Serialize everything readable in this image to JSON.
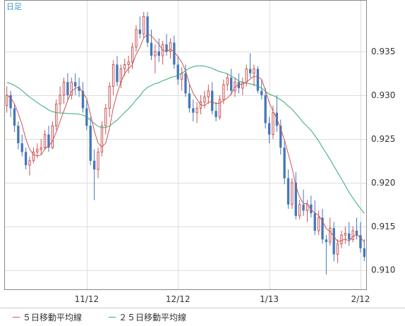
{
  "chart_data": {
    "type": "candlestick",
    "period_label": "日足",
    "y_ticks": [
      0.935,
      0.93,
      0.925,
      0.92,
      0.915,
      0.91
    ],
    "y_tick_labels": [
      "0.935",
      "0.930",
      "0.925",
      "0.920",
      "0.915",
      "0.910"
    ],
    "ylim": [
      0.9078,
      0.9408
    ],
    "x_tick_labels": [
      "11/12",
      "12/12",
      "1/13",
      "2/12"
    ],
    "x_tick_bar_index": [
      21,
      45,
      69,
      93
    ],
    "bar_count": 95,
    "grid": true,
    "legend": [
      {
        "name": "５日移動平均線",
        "color": "#cc5555"
      },
      {
        "name": "２５日移動平均線",
        "color": "#33aa77"
      }
    ],
    "colors": {
      "up": "#cc5555",
      "down": "#4477bb",
      "ma5": "#cc5555",
      "ma25": "#33aa77",
      "grid": "#dddddd",
      "frame": "#888888"
    },
    "ohlc": [
      [
        0.9288,
        0.931,
        0.928,
        0.93
      ],
      [
        0.93,
        0.9305,
        0.9275,
        0.9285
      ],
      [
        0.9285,
        0.929,
        0.9258,
        0.9265
      ],
      [
        0.9265,
        0.927,
        0.9238,
        0.9245
      ],
      [
        0.9245,
        0.9255,
        0.923,
        0.9235
      ],
      [
        0.9235,
        0.924,
        0.9215,
        0.922
      ],
      [
        0.922,
        0.923,
        0.9208,
        0.9225
      ],
      [
        0.9225,
        0.924,
        0.9222,
        0.9235
      ],
      [
        0.9235,
        0.9245,
        0.9228,
        0.9238
      ],
      [
        0.9238,
        0.925,
        0.9232,
        0.924
      ],
      [
        0.924,
        0.926,
        0.9238,
        0.9255
      ],
      [
        0.9255,
        0.9265,
        0.9235,
        0.924
      ],
      [
        0.924,
        0.927,
        0.9238,
        0.9265
      ],
      [
        0.9265,
        0.9295,
        0.926,
        0.929
      ],
      [
        0.929,
        0.931,
        0.928,
        0.93
      ],
      [
        0.93,
        0.932,
        0.929,
        0.9315
      ],
      [
        0.9315,
        0.9325,
        0.9295,
        0.93
      ],
      [
        0.93,
        0.932,
        0.9295,
        0.9315
      ],
      [
        0.9315,
        0.9325,
        0.93,
        0.931
      ],
      [
        0.931,
        0.932,
        0.9298,
        0.9305
      ],
      [
        0.9305,
        0.9315,
        0.928,
        0.9285
      ],
      [
        0.9285,
        0.9295,
        0.926,
        0.9265
      ],
      [
        0.9265,
        0.9275,
        0.922,
        0.9225
      ],
      [
        0.9225,
        0.9238,
        0.918,
        0.9215
      ],
      [
        0.9215,
        0.924,
        0.9205,
        0.9235
      ],
      [
        0.9235,
        0.927,
        0.923,
        0.9265
      ],
      [
        0.9265,
        0.929,
        0.9255,
        0.9285
      ],
      [
        0.9285,
        0.9315,
        0.9275,
        0.931
      ],
      [
        0.931,
        0.934,
        0.93,
        0.9335
      ],
      [
        0.9335,
        0.9345,
        0.931,
        0.9315
      ],
      [
        0.9315,
        0.9335,
        0.9308,
        0.933
      ],
      [
        0.933,
        0.9342,
        0.9322,
        0.9335
      ],
      [
        0.9335,
        0.9345,
        0.9325,
        0.9338
      ],
      [
        0.9338,
        0.936,
        0.933,
        0.9355
      ],
      [
        0.9355,
        0.938,
        0.935,
        0.9375
      ],
      [
        0.9375,
        0.939,
        0.9365,
        0.937
      ],
      [
        0.937,
        0.9395,
        0.9365,
        0.939
      ],
      [
        0.939,
        0.9395,
        0.9355,
        0.936
      ],
      [
        0.936,
        0.9375,
        0.934,
        0.9345
      ],
      [
        0.9345,
        0.9358,
        0.9325,
        0.935
      ],
      [
        0.935,
        0.9365,
        0.9338,
        0.9345
      ],
      [
        0.9345,
        0.9362,
        0.9335,
        0.9358
      ],
      [
        0.9358,
        0.937,
        0.9345,
        0.935
      ],
      [
        0.935,
        0.9365,
        0.9342,
        0.936
      ],
      [
        0.936,
        0.9368,
        0.933,
        0.9335
      ],
      [
        0.9335,
        0.9345,
        0.9312,
        0.9318
      ],
      [
        0.9318,
        0.9332,
        0.9305,
        0.9325
      ],
      [
        0.9325,
        0.9335,
        0.9298,
        0.9302
      ],
      [
        0.9302,
        0.9312,
        0.928,
        0.9285
      ],
      [
        0.9285,
        0.9295,
        0.927,
        0.928
      ],
      [
        0.928,
        0.9292,
        0.9268,
        0.9285
      ],
      [
        0.9285,
        0.93,
        0.9278,
        0.9292
      ],
      [
        0.9292,
        0.9305,
        0.9285,
        0.9298
      ],
      [
        0.9298,
        0.9312,
        0.929,
        0.9305
      ],
      [
        0.9305,
        0.9315,
        0.9278,
        0.9282
      ],
      [
        0.9282,
        0.9292,
        0.927,
        0.9275
      ],
      [
        0.9275,
        0.93,
        0.9272,
        0.9295
      ],
      [
        0.9295,
        0.9318,
        0.929,
        0.9312
      ],
      [
        0.9312,
        0.9325,
        0.9305,
        0.932
      ],
      [
        0.932,
        0.933,
        0.93,
        0.9305
      ],
      [
        0.9305,
        0.932,
        0.9298,
        0.9315
      ],
      [
        0.9315,
        0.9325,
        0.9302,
        0.9308
      ],
      [
        0.9308,
        0.932,
        0.93,
        0.9315
      ],
      [
        0.9315,
        0.9335,
        0.931,
        0.933
      ],
      [
        0.933,
        0.9348,
        0.932,
        0.9325
      ],
      [
        0.9325,
        0.9335,
        0.931,
        0.933
      ],
      [
        0.933,
        0.9333,
        0.9302,
        0.9305
      ],
      [
        0.9305,
        0.9318,
        0.9295,
        0.93
      ],
      [
        0.93,
        0.9308,
        0.9262,
        0.9268
      ],
      [
        0.9268,
        0.9275,
        0.9245,
        0.9255
      ],
      [
        0.9255,
        0.9288,
        0.925,
        0.928
      ],
      [
        0.928,
        0.93,
        0.9258,
        0.9265
      ],
      [
        0.9265,
        0.9272,
        0.9232,
        0.924
      ],
      [
        0.924,
        0.9248,
        0.9198,
        0.9205
      ],
      [
        0.9205,
        0.9215,
        0.917,
        0.9175
      ],
      [
        0.9175,
        0.9205,
        0.917,
        0.92
      ],
      [
        0.92,
        0.9212,
        0.9158,
        0.9162
      ],
      [
        0.9162,
        0.918,
        0.9158,
        0.9175
      ],
      [
        0.9175,
        0.9192,
        0.9162,
        0.9168
      ],
      [
        0.9168,
        0.918,
        0.9155,
        0.9175
      ],
      [
        0.9175,
        0.9185,
        0.916,
        0.9165
      ],
      [
        0.9165,
        0.918,
        0.914,
        0.9145
      ],
      [
        0.9145,
        0.9168,
        0.914,
        0.916
      ],
      [
        0.916,
        0.917,
        0.913,
        0.9135
      ],
      [
        0.9135,
        0.914,
        0.9095,
        0.9132
      ],
      [
        0.9132,
        0.916,
        0.9128,
        0.9148
      ],
      [
        0.9148,
        0.9155,
        0.911,
        0.9118
      ],
      [
        0.9118,
        0.9135,
        0.9108,
        0.913
      ],
      [
        0.913,
        0.9145,
        0.9125,
        0.914
      ],
      [
        0.914,
        0.915,
        0.913,
        0.9142
      ],
      [
        0.9142,
        0.9155,
        0.9128,
        0.9135
      ],
      [
        0.9135,
        0.915,
        0.9132,
        0.9145
      ],
      [
        0.9145,
        0.916,
        0.9135,
        0.914
      ],
      [
        0.914,
        0.9155,
        0.912,
        0.9125
      ],
      [
        0.9125,
        0.9135,
        0.911,
        0.9115
      ]
    ],
    "ma25_prior_close": 0.9315
  }
}
